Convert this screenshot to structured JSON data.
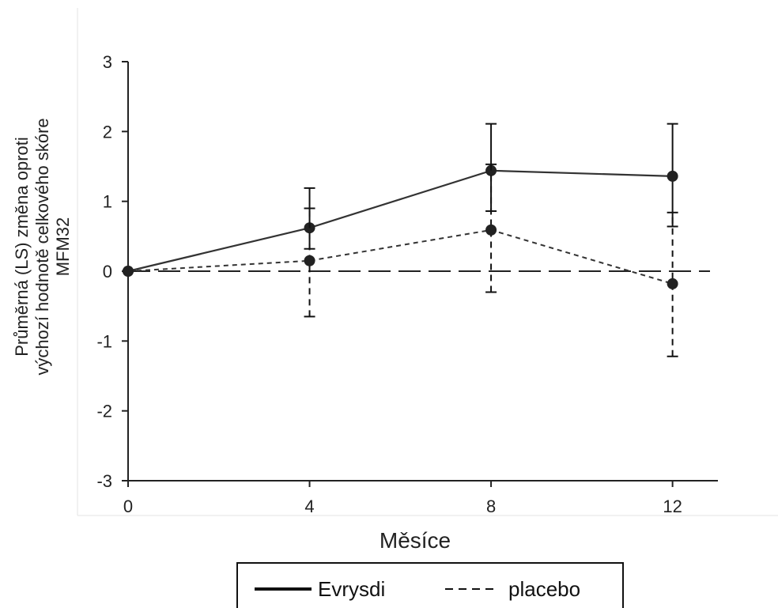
{
  "chart_data": {
    "type": "line",
    "xlabel": "Měsíce",
    "ylabel_lines": [
      "Průměrná (LS) změna oproti",
      "výchozí hodnotě celkového skóre",
      "MFM32"
    ],
    "x": [
      0,
      4,
      8,
      12
    ],
    "xlim": [
      0,
      13
    ],
    "ylim": [
      -3,
      3
    ],
    "xticks": [
      "0",
      "4",
      "8",
      "12"
    ],
    "yticks": [
      "3",
      "2",
      "1",
      "0",
      "-1",
      "-2",
      "-3"
    ],
    "reference_line_y": 0,
    "legend_position": "bottom-center",
    "series": [
      {
        "name": "Evrysdi",
        "style": "solid",
        "color": "#333333",
        "values": [
          0,
          0.62,
          1.44,
          1.36
        ],
        "err_low": [
          0,
          0.32,
          0.86,
          0.64
        ],
        "err_high": [
          0,
          1.19,
          2.11,
          2.11
        ]
      },
      {
        "name": "placebo",
        "style": "dashed",
        "color": "#333333",
        "values": [
          0,
          0.15,
          0.59,
          -0.18
        ],
        "err_low": [
          0,
          -0.65,
          -0.3,
          -1.22
        ],
        "err_high": [
          0,
          0.9,
          1.53,
          0.84
        ]
      }
    ]
  }
}
